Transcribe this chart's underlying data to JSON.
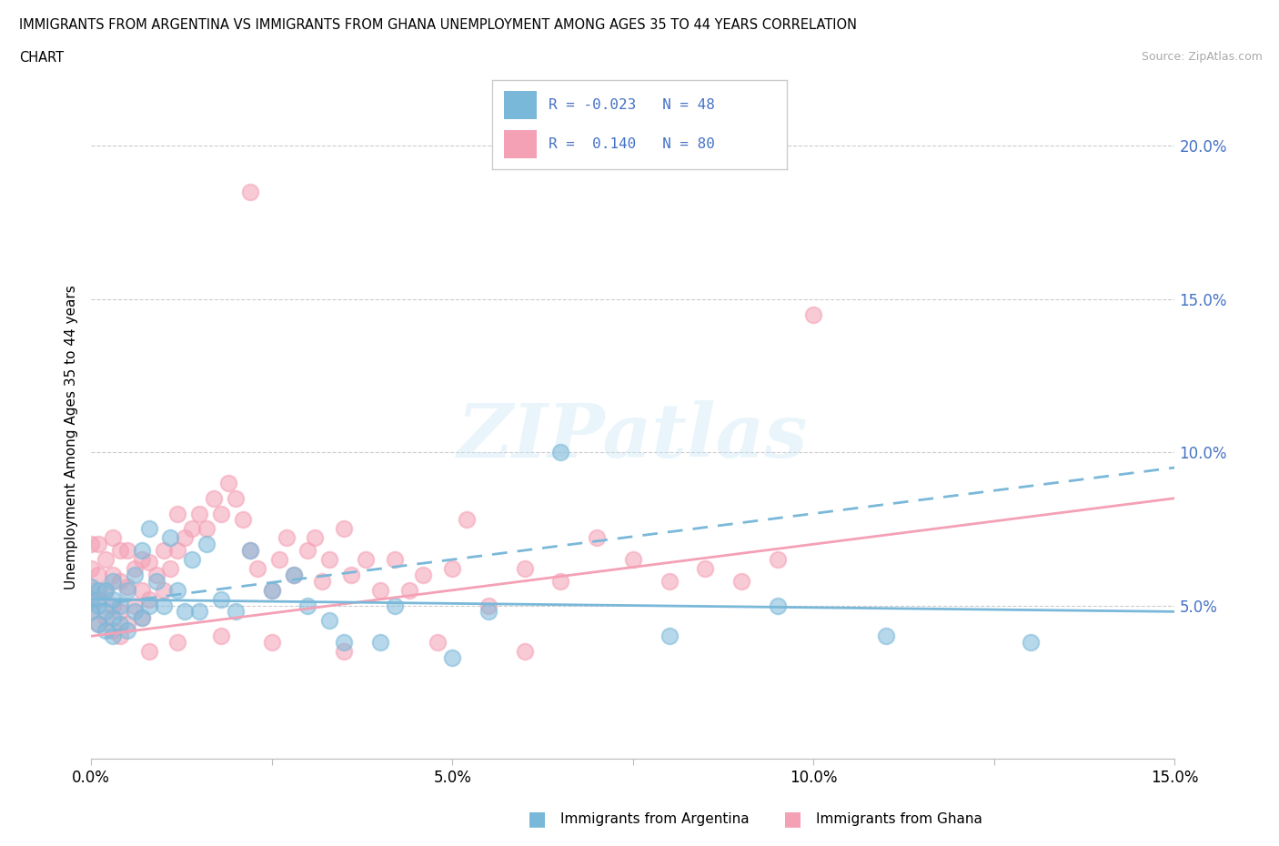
{
  "title_line1": "IMMIGRANTS FROM ARGENTINA VS IMMIGRANTS FROM GHANA UNEMPLOYMENT AMONG AGES 35 TO 44 YEARS CORRELATION",
  "title_line2": "CHART",
  "source": "Source: ZipAtlas.com",
  "ylabel": "Unemployment Among Ages 35 to 44 years",
  "xlim": [
    0.0,
    0.15
  ],
  "ylim": [
    0.0,
    0.21
  ],
  "argentina_color": "#7ab8d9",
  "ghana_color": "#f4a0b5",
  "argentina_R": -0.023,
  "argentina_N": 48,
  "ghana_R": 0.14,
  "ghana_N": 80,
  "legend_argentina_label": "Immigrants from Argentina",
  "legend_ghana_label": "Immigrants from Ghana",
  "watermark": "ZIPatlas",
  "arg_line_start_y": 0.052,
  "arg_line_end_y": 0.048,
  "gha_line_start_y": 0.04,
  "gha_line_end_y": 0.085,
  "arg_x": [
    0.0,
    0.0,
    0.0,
    0.001,
    0.001,
    0.001,
    0.002,
    0.002,
    0.002,
    0.003,
    0.003,
    0.003,
    0.003,
    0.004,
    0.004,
    0.005,
    0.005,
    0.006,
    0.006,
    0.007,
    0.007,
    0.008,
    0.008,
    0.009,
    0.01,
    0.011,
    0.012,
    0.013,
    0.014,
    0.015,
    0.016,
    0.018,
    0.02,
    0.022,
    0.025,
    0.028,
    0.03,
    0.033,
    0.035,
    0.04,
    0.042,
    0.05,
    0.055,
    0.065,
    0.08,
    0.095,
    0.11,
    0.13
  ],
  "arg_y": [
    0.048,
    0.052,
    0.056,
    0.044,
    0.05,
    0.055,
    0.042,
    0.048,
    0.055,
    0.04,
    0.046,
    0.052,
    0.058,
    0.044,
    0.05,
    0.042,
    0.055,
    0.048,
    0.06,
    0.046,
    0.068,
    0.05,
    0.075,
    0.058,
    0.05,
    0.072,
    0.055,
    0.048,
    0.065,
    0.048,
    0.07,
    0.052,
    0.048,
    0.068,
    0.055,
    0.06,
    0.05,
    0.045,
    0.038,
    0.038,
    0.05,
    0.033,
    0.048,
    0.1,
    0.04,
    0.05,
    0.04,
    0.038
  ],
  "gha_x": [
    0.0,
    0.0,
    0.0,
    0.0,
    0.001,
    0.001,
    0.001,
    0.001,
    0.002,
    0.002,
    0.002,
    0.003,
    0.003,
    0.003,
    0.003,
    0.004,
    0.004,
    0.004,
    0.005,
    0.005,
    0.005,
    0.006,
    0.006,
    0.007,
    0.007,
    0.007,
    0.008,
    0.008,
    0.009,
    0.01,
    0.01,
    0.011,
    0.012,
    0.012,
    0.013,
    0.014,
    0.015,
    0.016,
    0.017,
    0.018,
    0.019,
    0.02,
    0.021,
    0.022,
    0.023,
    0.025,
    0.026,
    0.027,
    0.028,
    0.03,
    0.031,
    0.032,
    0.033,
    0.035,
    0.036,
    0.038,
    0.04,
    0.042,
    0.044,
    0.046,
    0.05,
    0.052,
    0.055,
    0.06,
    0.065,
    0.07,
    0.075,
    0.08,
    0.085,
    0.09,
    0.095,
    0.1,
    0.06,
    0.048,
    0.035,
    0.025,
    0.018,
    0.012,
    0.008,
    0.004
  ],
  "gha_y": [
    0.048,
    0.055,
    0.062,
    0.07,
    0.044,
    0.052,
    0.06,
    0.07,
    0.046,
    0.055,
    0.065,
    0.042,
    0.05,
    0.06,
    0.072,
    0.048,
    0.058,
    0.068,
    0.044,
    0.056,
    0.068,
    0.05,
    0.062,
    0.046,
    0.055,
    0.065,
    0.052,
    0.064,
    0.06,
    0.055,
    0.068,
    0.062,
    0.068,
    0.08,
    0.072,
    0.075,
    0.08,
    0.075,
    0.085,
    0.08,
    0.09,
    0.085,
    0.078,
    0.068,
    0.062,
    0.055,
    0.065,
    0.072,
    0.06,
    0.068,
    0.072,
    0.058,
    0.065,
    0.075,
    0.06,
    0.065,
    0.055,
    0.065,
    0.055,
    0.06,
    0.062,
    0.078,
    0.05,
    0.062,
    0.058,
    0.072,
    0.065,
    0.058,
    0.062,
    0.058,
    0.065,
    0.145,
    0.035,
    0.038,
    0.035,
    0.038,
    0.04,
    0.038,
    0.035,
    0.04
  ]
}
